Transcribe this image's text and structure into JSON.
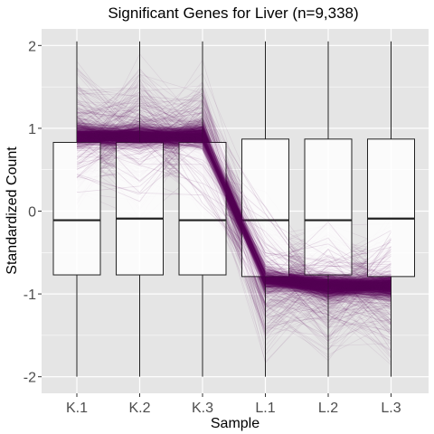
{
  "chart_data": {
    "type": "parallel-coordinates-boxplot",
    "title": "Significant Genes for Liver (n=9,338)",
    "xlabel": "Sample",
    "ylabel": "Standardized Count",
    "categories": [
      "K.1",
      "K.2",
      "K.3",
      "L.1",
      "L.2",
      "L.3"
    ],
    "yticks": [
      "2",
      "1",
      "0",
      "-1",
      "-2"
    ],
    "ytick_values": [
      2,
      1,
      0,
      -1,
      -2
    ],
    "ylim": [
      -2.2,
      2.2
    ],
    "n_genes": 9338,
    "line_color": "#5a005a",
    "panel_color": "#e5e5e5",
    "grid_color": "#ffffff",
    "grid": true,
    "boxes": [
      {
        "category": "K.1",
        "q1": -0.77,
        "median": -0.11,
        "q3": 0.83,
        "min": -2.0,
        "max": 2.05
      },
      {
        "category": "K.2",
        "q1": -0.77,
        "median": -0.09,
        "q3": 0.83,
        "min": -2.0,
        "max": 2.05
      },
      {
        "category": "K.3",
        "q1": -0.77,
        "median": -0.11,
        "q3": 0.83,
        "min": -2.0,
        "max": 2.05
      },
      {
        "category": "L.1",
        "q1": -0.79,
        "median": -0.11,
        "q3": 0.87,
        "min": -2.0,
        "max": 2.05
      },
      {
        "category": "L.2",
        "q1": -0.77,
        "median": -0.11,
        "q3": 0.87,
        "min": -2.0,
        "max": 2.05
      },
      {
        "category": "L.3",
        "q1": -0.79,
        "median": -0.09,
        "q3": 0.87,
        "min": -2.0,
        "max": 2.05
      }
    ],
    "profile_centers": [
      0.9,
      0.9,
      0.9,
      -0.8,
      -0.9,
      -0.9
    ]
  }
}
